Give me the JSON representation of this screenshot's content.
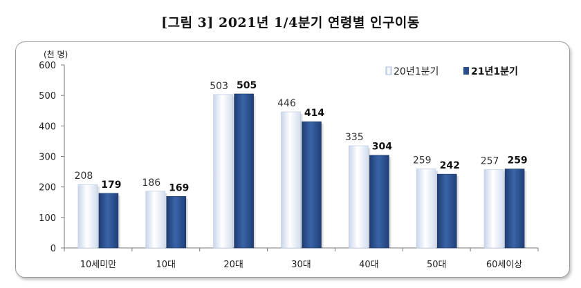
{
  "title": "[그림 3] 2021년 1/4분기 연령별 인구이동",
  "chart_data": {
    "type": "bar",
    "unit": "(천 명)",
    "categories": [
      "10세미만",
      "10대",
      "20대",
      "30대",
      "40대",
      "50대",
      "60세이상"
    ],
    "series": [
      {
        "name": "20년1분기",
        "values": [
          208,
          186,
          503,
          446,
          335,
          259,
          257
        ],
        "color": "#e8eef8"
      },
      {
        "name": "21년1분기",
        "values": [
          179,
          169,
          505,
          414,
          304,
          242,
          259
        ],
        "color": "#2b4f8c"
      }
    ],
    "ylim": [
      0,
      600
    ],
    "yticks": [
      0,
      100,
      200,
      300,
      400,
      500,
      600
    ],
    "legend": "top-right",
    "grid": false
  }
}
